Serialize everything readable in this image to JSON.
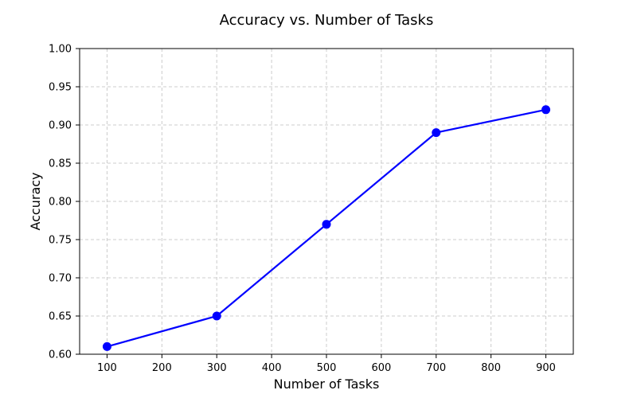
{
  "chart_data": {
    "type": "line",
    "title": "Accuracy vs. Number of Tasks",
    "xlabel": "Number of Tasks",
    "ylabel": "Accuracy",
    "x": [
      100,
      300,
      500,
      700,
      900
    ],
    "series": [
      {
        "values": [
          0.61,
          0.65,
          0.77,
          0.89,
          0.92
        ],
        "color": "#0000ff",
        "marker": "circle"
      }
    ],
    "xlim": [
      50,
      950
    ],
    "ylim": [
      0.6,
      1.0
    ],
    "xticks": [
      "100",
      "200",
      "300",
      "400",
      "500",
      "600",
      "700",
      "800",
      "900"
    ],
    "yticks": [
      "0.60",
      "0.65",
      "0.70",
      "0.75",
      "0.80",
      "0.85",
      "0.90",
      "0.95",
      "1.00"
    ],
    "grid": true,
    "grid_style": "dashed",
    "legend": false
  }
}
